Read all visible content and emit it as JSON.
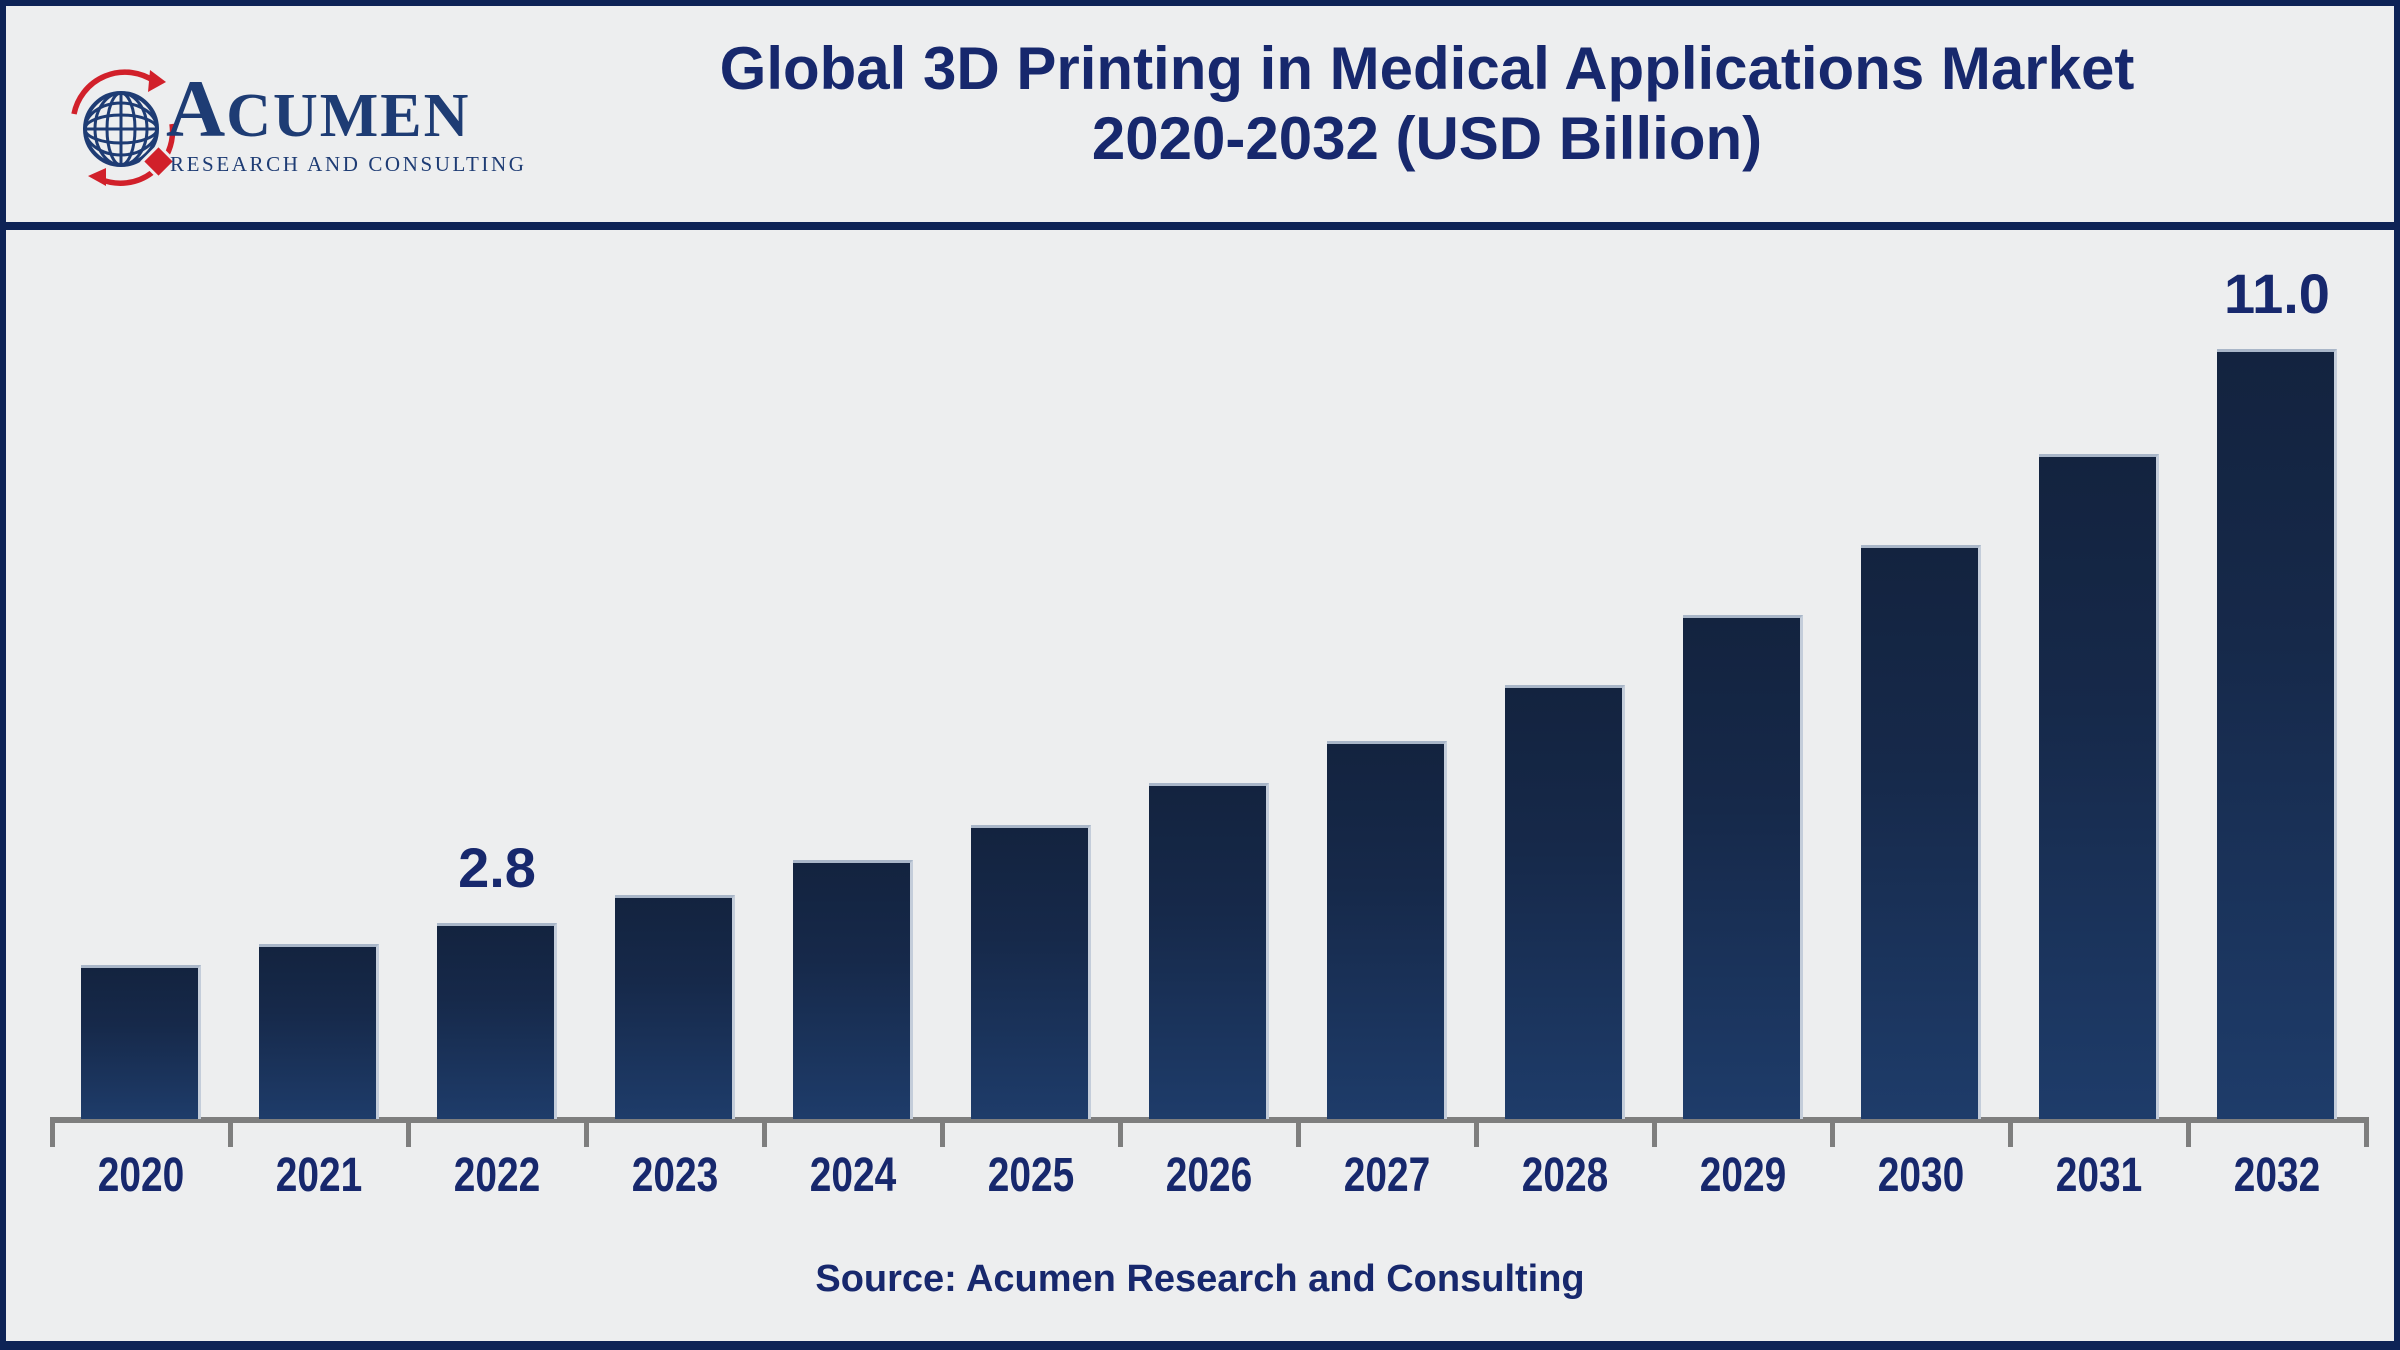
{
  "page": {
    "background": "#EDEEEF",
    "frame_color": "#0E2356"
  },
  "header": {
    "logo": {
      "brand_initial": "A",
      "brand_rest": "CUMEN",
      "brand_sub": "RESEARCH AND CONSULTING",
      "navy": "#1E3C74",
      "red": "#D1202A"
    },
    "title_line1": "Global 3D Printing in Medical Applications Market",
    "title_line2": "2020-2032 (USD Billion)",
    "title_color": "#17286D"
  },
  "chart_data": {
    "type": "bar",
    "title": "Global 3D Printing in Medical Applications Market 2020-2032 (USD Billion)",
    "unit": "USD Billion",
    "categories": [
      "2020",
      "2021",
      "2022",
      "2023",
      "2024",
      "2025",
      "2026",
      "2027",
      "2028",
      "2029",
      "2030",
      "2031",
      "2032"
    ],
    "values": [
      2.2,
      2.5,
      2.8,
      3.2,
      3.7,
      4.2,
      4.8,
      5.4,
      6.2,
      7.2,
      8.2,
      9.5,
      11.0
    ],
    "data_labels_shown": {
      "2022": "2.8",
      "2032": "11.0"
    },
    "ylim": [
      0,
      11
    ],
    "grid": false,
    "legend": false,
    "xlabel": "",
    "ylabel": "",
    "bar_gradient_top": "#13233F",
    "bar_gradient_bottom": "#1E3C6A",
    "bar_edge_light": "#A9B6C8",
    "axis_color": "#7E7E7E",
    "label_color": "#17286D"
  },
  "footer": {
    "source_text": "Source: Acumen Research and Consulting"
  }
}
